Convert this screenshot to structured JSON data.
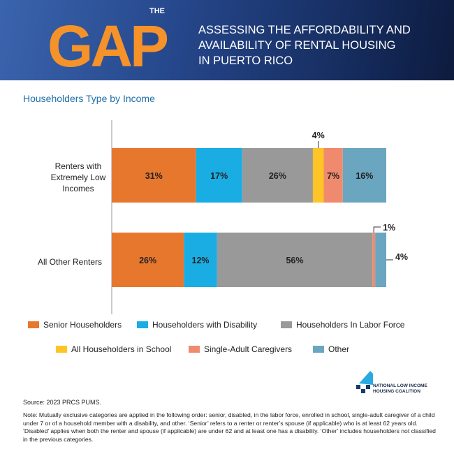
{
  "header": {
    "logo_small": "THE",
    "logo_big": "GAP",
    "title_lines": [
      "ASSESSING THE AFFORDABILITY AND",
      "AVAILABILITY OF RENTAL HOUSING",
      "IN PUERTO RICO"
    ]
  },
  "chart_data": {
    "type": "bar",
    "orientation": "horizontal",
    "stacked": true,
    "title": "Householders Type by Income",
    "categories": [
      "Renters with Extremely Low Incomes",
      "All Other Renters"
    ],
    "category_lines": [
      [
        "Renters with",
        "Extremely Low",
        "Incomes"
      ],
      [
        "All Other Renters"
      ]
    ],
    "series": [
      {
        "name": "Senior Householders",
        "color": "#E8772E",
        "values": [
          31,
          26
        ],
        "labels": [
          "31%",
          "26%"
        ]
      },
      {
        "name": "Householders with Disability",
        "color": "#1AADE4",
        "values": [
          17,
          12
        ],
        "labels": [
          "17%",
          "12%"
        ]
      },
      {
        "name": "Householders In Labor Force",
        "color": "#999999",
        "values": [
          26,
          56
        ],
        "labels": [
          "26%",
          "56%"
        ]
      },
      {
        "name": "All Householders in School",
        "color": "#FFC425",
        "values": [
          4,
          0
        ],
        "labels": [
          "4%",
          ""
        ]
      },
      {
        "name": "Single-Adult Caregivers",
        "color": "#F08A6E",
        "values": [
          7,
          1
        ],
        "labels": [
          "7%",
          "1%"
        ]
      },
      {
        "name": "Other",
        "color": "#6AA6BF",
        "values": [
          16,
          4
        ],
        "labels": [
          "16%",
          "4%"
        ]
      }
    ],
    "legend_position": "bottom",
    "grid": false
  },
  "footer": {
    "source": "Source: 2023 PRCS PUMS.",
    "note": "Note: Mutually exclusive categories are applied in the following order: senior, disabled, in the labor force, enrolled in school, single-adult caregiver of a child under 7 or of a household member with a disability, and other. ‘Senior’ refers to a renter or renter’s spouse (if applicable) who is at least 62 years old. ‘Disabled’ applies when both the renter and spouse (if applicable) are under 62 and at least one has a disability. ‘Other’ includes householders not classified in the previous categories.",
    "org_lines": [
      "NATIONAL LOW INCOME",
      "HOUSING COALITION"
    ]
  }
}
